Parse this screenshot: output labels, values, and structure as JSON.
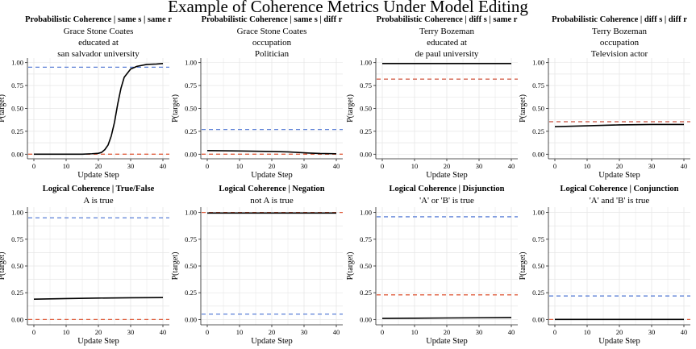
{
  "figure": {
    "title": "Example of Coherence Metrics Under Model Editing",
    "colors": {
      "curve": "#000000",
      "upper_ref": "#5a7fd6",
      "lower_ref": "#e06040",
      "grid": "#e6e6e6",
      "axis": "#222222"
    }
  },
  "chart_data": [
    {
      "type": "line",
      "title": "Probabilistic Coherence | same s | same r",
      "subtitle": [
        "Grace Stone Coates",
        "educated at",
        "san salvador university"
      ],
      "xlabel": "Update Step",
      "ylabel": "P(target)",
      "xlim": [
        -2,
        42
      ],
      "ylim": [
        -0.05,
        1.05
      ],
      "xticks": [
        0,
        10,
        20,
        30,
        40
      ],
      "yticks": [
        0.0,
        0.25,
        0.5,
        0.75,
        1.0
      ],
      "xtick_labels": [
        "0",
        "10",
        "20",
        "30",
        "40"
      ],
      "ytick_labels": [
        "0.00",
        "0.25",
        "0.50",
        "0.75",
        "1.00"
      ],
      "grid": true,
      "series": [
        {
          "x": [
            0,
            5,
            10,
            15,
            18,
            20,
            21,
            22,
            23,
            24,
            25,
            26,
            27,
            28,
            30,
            32,
            35,
            38,
            40
          ],
          "values": [
            0.0,
            0.0,
            0.0,
            0.0,
            0.005,
            0.01,
            0.02,
            0.05,
            0.1,
            0.2,
            0.35,
            0.55,
            0.72,
            0.84,
            0.93,
            0.96,
            0.98,
            0.985,
            0.99
          ]
        }
      ],
      "reference_lines": [
        {
          "y": 0.95,
          "color": "#5a7fd6"
        },
        {
          "y": 0.0,
          "color": "#e06040"
        }
      ]
    },
    {
      "type": "line",
      "title": "Probabilistic Coherence | same s | diff r",
      "subtitle": [
        "Grace Stone Coates",
        "occupation",
        "Politician"
      ],
      "xlabel": "Update Step",
      "ylabel": "P(target)",
      "xlim": [
        -2,
        42
      ],
      "ylim": [
        -0.05,
        1.05
      ],
      "xticks": [
        0,
        10,
        20,
        30,
        40
      ],
      "yticks": [
        0.0,
        0.25,
        0.5,
        0.75,
        1.0
      ],
      "xtick_labels": [
        "0",
        "10",
        "20",
        "30",
        "40"
      ],
      "ytick_labels": [
        "0.00",
        "0.25",
        "0.50",
        "0.75",
        "1.00"
      ],
      "grid": true,
      "series": [
        {
          "x": [
            0,
            10,
            20,
            25,
            30,
            35,
            40
          ],
          "values": [
            0.04,
            0.035,
            0.03,
            0.025,
            0.015,
            0.008,
            0.005
          ]
        }
      ],
      "reference_lines": [
        {
          "y": 0.27,
          "color": "#5a7fd6"
        },
        {
          "y": 0.0,
          "color": "#e06040"
        }
      ]
    },
    {
      "type": "line",
      "title": "Probabilistic Coherence | diff s | same r",
      "subtitle": [
        "Terry Bozeman",
        "educated at",
        "de paul university"
      ],
      "xlabel": "Update Step",
      "ylabel": "P(target)",
      "xlim": [
        -2,
        42
      ],
      "ylim": [
        -0.05,
        1.05
      ],
      "xticks": [
        0,
        10,
        20,
        30,
        40
      ],
      "yticks": [
        0.0,
        0.25,
        0.5,
        0.75,
        1.0
      ],
      "xtick_labels": [
        "0",
        "10",
        "20",
        "30",
        "40"
      ],
      "ytick_labels": [
        "0.00",
        "0.25",
        "0.50",
        "0.75",
        "1.00"
      ],
      "grid": true,
      "series": [
        {
          "x": [
            0,
            10,
            20,
            30,
            40
          ],
          "values": [
            0.99,
            0.99,
            0.99,
            0.99,
            0.99
          ]
        }
      ],
      "reference_lines": [
        {
          "y": 0.82,
          "color": "#5a7fd6"
        },
        {
          "y": 0.82,
          "color": "#e06040"
        }
      ]
    },
    {
      "type": "line",
      "title": "Probabilistic Coherence | diff s | diff r",
      "subtitle": [
        "Terry Bozeman",
        "occupation",
        "Television actor"
      ],
      "xlabel": "Update Step",
      "ylabel": "P(target)",
      "xlim": [
        -2,
        42
      ],
      "ylim": [
        -0.05,
        1.05
      ],
      "xticks": [
        0,
        10,
        20,
        30,
        40
      ],
      "yticks": [
        0.0,
        0.25,
        0.5,
        0.75,
        1.0
      ],
      "xtick_labels": [
        "0",
        "10",
        "20",
        "30",
        "40"
      ],
      "ytick_labels": [
        "0.00",
        "0.25",
        "0.50",
        "0.75",
        "1.00"
      ],
      "grid": true,
      "series": [
        {
          "x": [
            0,
            10,
            20,
            30,
            40
          ],
          "values": [
            0.3,
            0.31,
            0.32,
            0.325,
            0.325
          ]
        }
      ],
      "reference_lines": [
        {
          "y": 0.355,
          "color": "#5a7fd6"
        },
        {
          "y": 0.355,
          "color": "#e06040"
        }
      ]
    },
    {
      "type": "line",
      "title": "Logical Coherence | True/False",
      "subtitle": [
        "A is true"
      ],
      "xlabel": "Update Step",
      "ylabel": "P(target)",
      "xlim": [
        -2,
        42
      ],
      "ylim": [
        -0.05,
        1.05
      ],
      "xticks": [
        0,
        10,
        20,
        30,
        40
      ],
      "yticks": [
        0.0,
        0.25,
        0.5,
        0.75,
        1.0
      ],
      "xtick_labels": [
        "0",
        "10",
        "20",
        "30",
        "40"
      ],
      "ytick_labels": [
        "0.00",
        "0.25",
        "0.50",
        "0.75",
        "1.00"
      ],
      "grid": true,
      "series": [
        {
          "x": [
            0,
            10,
            20,
            30,
            40
          ],
          "values": [
            0.19,
            0.195,
            0.2,
            0.203,
            0.205
          ]
        }
      ],
      "reference_lines": [
        {
          "y": 0.95,
          "color": "#5a7fd6"
        },
        {
          "y": 0.0,
          "color": "#e06040"
        }
      ]
    },
    {
      "type": "line",
      "title": "Logical Coherence | Negation",
      "subtitle": [
        "not A is true"
      ],
      "xlabel": "Update Step",
      "ylabel": "P(target)",
      "xlim": [
        -2,
        42
      ],
      "ylim": [
        -0.05,
        1.05
      ],
      "xticks": [
        0,
        10,
        20,
        30,
        40
      ],
      "yticks": [
        0.0,
        0.25,
        0.5,
        0.75,
        1.0
      ],
      "xtick_labels": [
        "0",
        "10",
        "20",
        "30",
        "40"
      ],
      "ytick_labels": [
        "0.00",
        "0.25",
        "0.50",
        "0.75",
        "1.00"
      ],
      "grid": true,
      "series": [
        {
          "x": [
            0,
            10,
            20,
            30,
            40
          ],
          "values": [
            0.995,
            0.995,
            0.995,
            0.995,
            0.995
          ]
        }
      ],
      "reference_lines": [
        {
          "y": 0.05,
          "color": "#5a7fd6"
        },
        {
          "y": 1.0,
          "color": "#e06040"
        }
      ]
    },
    {
      "type": "line",
      "title": "Logical Coherence | Disjunction",
      "subtitle": [
        "'A' or 'B' is true"
      ],
      "xlabel": "Update Step",
      "ylabel": "P(target)",
      "xlim": [
        -2,
        42
      ],
      "ylim": [
        -0.05,
        1.05
      ],
      "xticks": [
        0,
        10,
        20,
        30,
        40
      ],
      "yticks": [
        0.0,
        0.25,
        0.5,
        0.75,
        1.0
      ],
      "xtick_labels": [
        "0",
        "10",
        "20",
        "30",
        "40"
      ],
      "ytick_labels": [
        "0.00",
        "0.25",
        "0.50",
        "0.75",
        "1.00"
      ],
      "grid": true,
      "series": [
        {
          "x": [
            0,
            10,
            20,
            30,
            40
          ],
          "values": [
            0.01,
            0.012,
            0.014,
            0.016,
            0.018
          ]
        }
      ],
      "reference_lines": [
        {
          "y": 0.96,
          "color": "#5a7fd6"
        },
        {
          "y": 0.23,
          "color": "#e06040"
        }
      ]
    },
    {
      "type": "line",
      "title": "Logical Coherence | Conjunction",
      "subtitle": [
        "'A' and 'B' is true"
      ],
      "xlabel": "Update Step",
      "ylabel": "P(target)",
      "xlim": [
        -2,
        42
      ],
      "ylim": [
        -0.05,
        1.05
      ],
      "xticks": [
        0,
        10,
        20,
        30,
        40
      ],
      "yticks": [
        0.0,
        0.25,
        0.5,
        0.75,
        1.0
      ],
      "xtick_labels": [
        "0",
        "10",
        "20",
        "30",
        "40"
      ],
      "ytick_labels": [
        "0.00",
        "0.25",
        "0.50",
        "0.75",
        "1.00"
      ],
      "grid": true,
      "series": [
        {
          "x": [
            0,
            10,
            20,
            30,
            40
          ],
          "values": [
            0.0,
            0.0,
            0.0,
            0.0,
            0.0
          ]
        }
      ],
      "reference_lines": [
        {
          "y": 0.22,
          "color": "#5a7fd6"
        },
        {
          "y": 0.0,
          "color": "#e06040"
        }
      ]
    }
  ]
}
